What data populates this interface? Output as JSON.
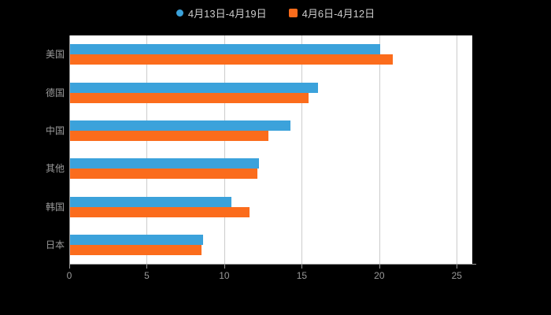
{
  "chart_data": {
    "type": "bar",
    "orientation": "horizontal",
    "title": "",
    "categories": [
      "美国",
      "德国",
      "中国",
      "其他",
      "韩国",
      "日本"
    ],
    "series": [
      {
        "name": "4月13日-4月19日",
        "color": "#3BA2DB",
        "values": [
          20.0,
          16.0,
          14.2,
          12.2,
          10.4,
          8.6
        ]
      },
      {
        "name": "4月6日-4月12日",
        "color": "#FB6C1C",
        "values": [
          20.8,
          15.4,
          12.8,
          12.1,
          11.6,
          8.5
        ]
      }
    ],
    "xlim": [
      0,
      26
    ],
    "xticks": [
      0,
      5,
      10,
      15,
      20,
      25
    ],
    "grid": true,
    "legend_position": "top",
    "colors": {
      "background": "#000000",
      "plot_background": "#ffffff",
      "axis": "#999999",
      "gridline": "#cccccc",
      "label_text": "#999999",
      "legend_text": "#cccccc"
    }
  }
}
